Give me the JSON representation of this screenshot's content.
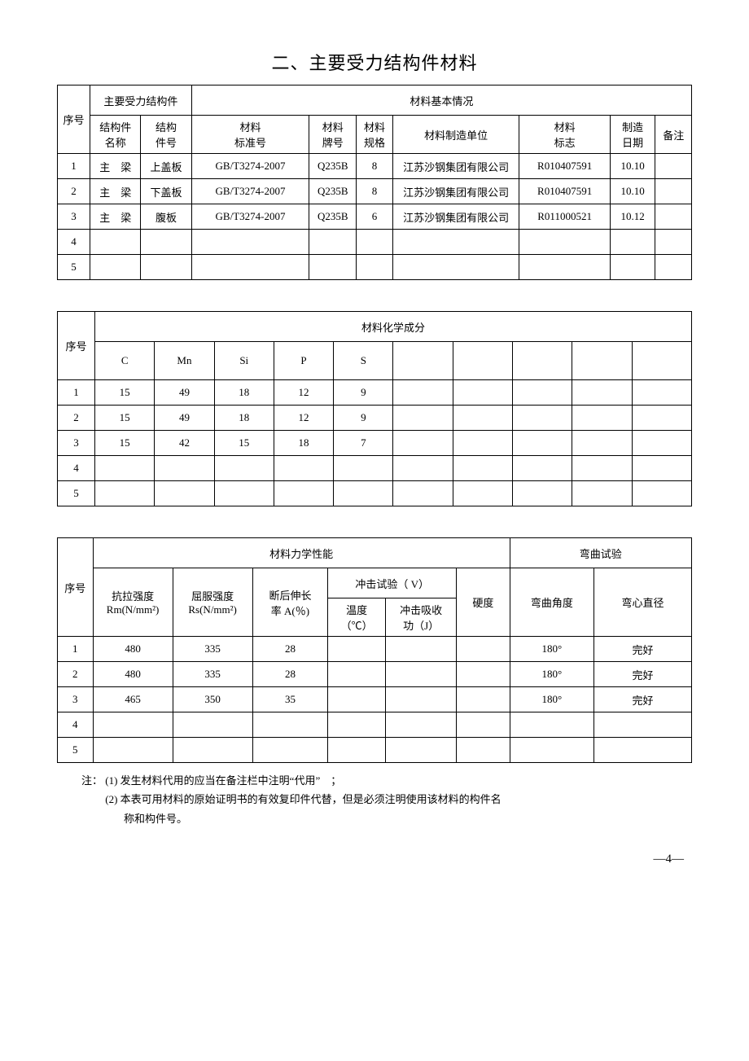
{
  "title": "二、主要受力结构件材料",
  "table1": {
    "header": {
      "seq": "序号",
      "group1": "主要受力结构件",
      "group2": "材料基本情况",
      "component_name": "结构件\n名称",
      "component_no": "结构\n件号",
      "std_no": "材料\n标准号",
      "grade": "材料\n牌号",
      "spec": "材料\n规格",
      "mfr": "材料制造单位",
      "mark": "材料\n标志",
      "date": "制造\n日期",
      "remark": "备注"
    },
    "rows": [
      {
        "no": "1",
        "name": "主　梁",
        "part": "上盖板",
        "std": "GB/T3274-2007",
        "grade": "Q235B",
        "spec": "8",
        "mfr": "江苏沙钢集团有限公司",
        "mark": "R010407591",
        "date": "10.10",
        "remark": ""
      },
      {
        "no": "2",
        "name": "主　梁",
        "part": "下盖板",
        "std": "GB/T3274-2007",
        "grade": "Q235B",
        "spec": "8",
        "mfr": "江苏沙钢集团有限公司",
        "mark": "R010407591",
        "date": "10.10",
        "remark": ""
      },
      {
        "no": "3",
        "name": "主　梁",
        "part": "腹板",
        "std": "GB/T3274-2007",
        "grade": "Q235B",
        "spec": "6",
        "mfr": "江苏沙钢集团有限公司",
        "mark": "R011000521",
        "date": "10.12",
        "remark": ""
      },
      {
        "no": "4",
        "name": "",
        "part": "",
        "std": "",
        "grade": "",
        "spec": "",
        "mfr": "",
        "mark": "",
        "date": "",
        "remark": ""
      },
      {
        "no": "5",
        "name": "",
        "part": "",
        "std": "",
        "grade": "",
        "spec": "",
        "mfr": "",
        "mark": "",
        "date": "",
        "remark": ""
      }
    ]
  },
  "table2": {
    "header": {
      "seq": "序号",
      "group": "材料化学成分",
      "cols": [
        "C",
        "Mn",
        "Si",
        "P",
        "S",
        "",
        "",
        "",
        "",
        ""
      ]
    },
    "rows": [
      {
        "no": "1",
        "vals": [
          "15",
          "49",
          "18",
          "12",
          "9",
          "",
          "",
          "",
          "",
          ""
        ]
      },
      {
        "no": "2",
        "vals": [
          "15",
          "49",
          "18",
          "12",
          "9",
          "",
          "",
          "",
          "",
          ""
        ]
      },
      {
        "no": "3",
        "vals": [
          "15",
          "42",
          "15",
          "18",
          "7",
          "",
          "",
          "",
          "",
          ""
        ]
      },
      {
        "no": "4",
        "vals": [
          "",
          "",
          "",
          "",
          "",
          "",
          "",
          "",
          "",
          ""
        ]
      },
      {
        "no": "5",
        "vals": [
          "",
          "",
          "",
          "",
          "",
          "",
          "",
          "",
          "",
          ""
        ]
      }
    ]
  },
  "table3": {
    "header": {
      "seq": "序号",
      "mech_group": "材料力学性能",
      "bend_group": "弯曲试验",
      "tensile": "抗拉强度\nRm(N/mm²)",
      "yield": "屈服强度\nRs(N/mm²)",
      "elong": "断后伸长\n率 A(％)",
      "impact_group": "冲击试验（ V）",
      "temp": "温度\n（℃）",
      "absorb": "冲击吸收\n功（J）",
      "hardness": "硬度",
      "bend_angle": "弯曲角度",
      "bend_dia": "弯心直径"
    },
    "rows": [
      {
        "no": "1",
        "tensile": "480",
        "yield": "335",
        "elong": "28",
        "temp": "",
        "absorb": "",
        "hard": "",
        "angle": "180°",
        "dia": "完好"
      },
      {
        "no": "2",
        "tensile": "480",
        "yield": "335",
        "elong": "28",
        "temp": "",
        "absorb": "",
        "hard": "",
        "angle": "180°",
        "dia": "完好"
      },
      {
        "no": "3",
        "tensile": "465",
        "yield": "350",
        "elong": "35",
        "temp": "",
        "absorb": "",
        "hard": "",
        "angle": "180°",
        "dia": "完好"
      },
      {
        "no": "4",
        "tensile": "",
        "yield": "",
        "elong": "",
        "temp": "",
        "absorb": "",
        "hard": "",
        "angle": "",
        "dia": ""
      },
      {
        "no": "5",
        "tensile": "",
        "yield": "",
        "elong": "",
        "temp": "",
        "absorb": "",
        "hard": "",
        "angle": "",
        "dia": ""
      }
    ]
  },
  "notes": {
    "prefix": "注：",
    "n1": "(1) 发生材料代用的应当在备注栏中注明“代用”　；",
    "n2": "(2) 本表可用材料的原始证明书的有效复印件代替，但是必须注明使用该材料的构件名",
    "n2b": "称和构件号。"
  },
  "page": "—4—"
}
